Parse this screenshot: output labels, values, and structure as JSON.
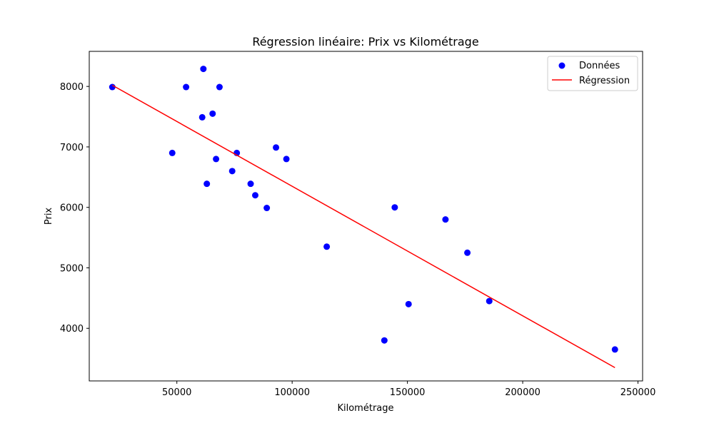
{
  "chart_data": {
    "type": "scatter",
    "title": "Régression linéaire: Prix vs Kilométrage",
    "xlabel": "Kilométrage",
    "ylabel": "Prix",
    "xlim": [
      12000,
      252000
    ],
    "ylim": [
      3130,
      8580
    ],
    "xticks": [
      50000,
      100000,
      150000,
      200000,
      250000
    ],
    "yticks": [
      4000,
      5000,
      6000,
      7000,
      8000
    ],
    "grid": false,
    "legend_position": "top-right",
    "series": [
      {
        "name": "Données",
        "kind": "scatter",
        "color": "#0000ff",
        "points": [
          [
            22000,
            7990
          ],
          [
            48000,
            6900
          ],
          [
            54000,
            7990
          ],
          [
            61000,
            7490
          ],
          [
            61500,
            8290
          ],
          [
            63000,
            6390
          ],
          [
            65500,
            7550
          ],
          [
            67000,
            6800
          ],
          [
            68500,
            7990
          ],
          [
            74000,
            6600
          ],
          [
            76000,
            6900
          ],
          [
            82000,
            6390
          ],
          [
            84000,
            6200
          ],
          [
            89000,
            5990
          ],
          [
            93000,
            6990
          ],
          [
            97500,
            6800
          ],
          [
            115000,
            5350
          ],
          [
            140000,
            3800
          ],
          [
            144500,
            6000
          ],
          [
            150500,
            4400
          ],
          [
            166500,
            5800
          ],
          [
            176000,
            5250
          ],
          [
            185500,
            4450
          ],
          [
            240000,
            3650
          ]
        ]
      },
      {
        "name": "Régression",
        "kind": "line",
        "color": "#ff0000",
        "points": [
          [
            22000,
            8020
          ],
          [
            240000,
            3350
          ]
        ]
      }
    ]
  }
}
